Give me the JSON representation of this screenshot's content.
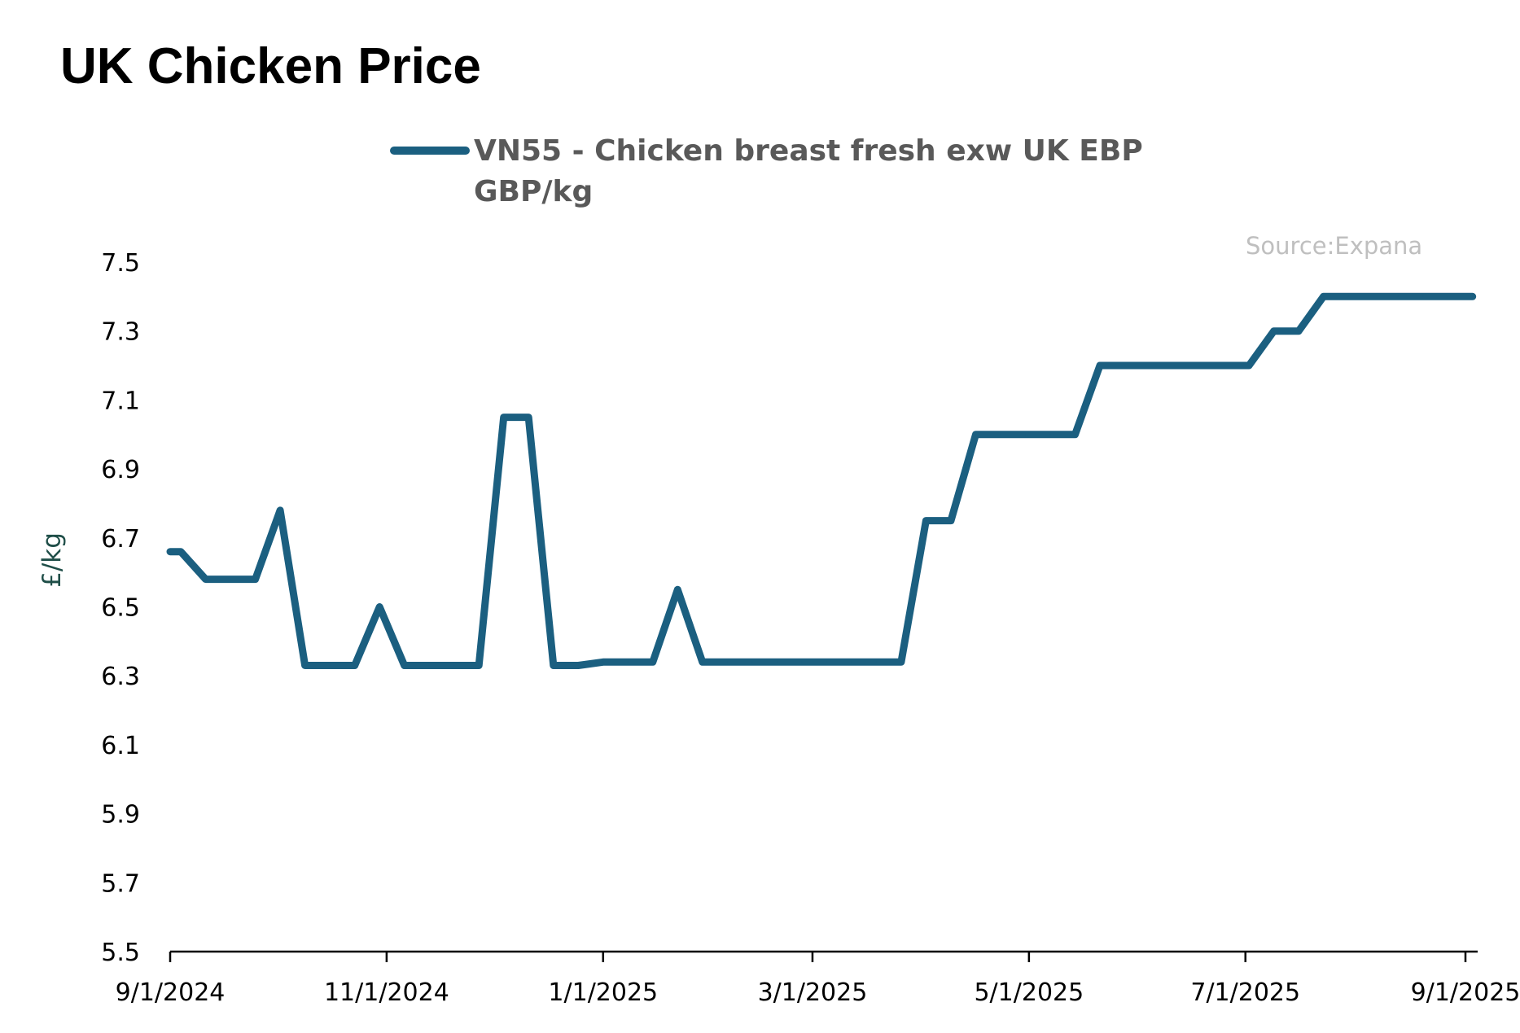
{
  "chart_data": {
    "type": "line",
    "title": "UK Chicken Price",
    "ylabel": "£/kg",
    "xlabel": "",
    "source": "Source:Expana",
    "ylim": [
      5.5,
      7.5
    ],
    "xlim": [
      "2024-09-01",
      "2025-09-03"
    ],
    "yticks": [
      5.5,
      5.7,
      5.9,
      6.1,
      6.3,
      6.5,
      6.7,
      6.9,
      7.1,
      7.3,
      7.5
    ],
    "xticks": [
      "2024-09-01",
      "2024-11-01",
      "2025-01-01",
      "2025-03-01",
      "2025-05-01",
      "2025-07-01",
      "2025-09-01"
    ],
    "xtick_labels": [
      "9/1/2024",
      "11/1/2024",
      "1/1/2025",
      "3/1/2025",
      "5/1/2025",
      "7/1/2025",
      "9/1/2025"
    ],
    "grid": false,
    "legend_position": "top-center",
    "series": [
      {
        "name": "VN55 - Chicken breast fresh exw UK EBP GBP/kg",
        "legend_lines": [
          "VN55 - Chicken breast fresh exw UK EBP",
          "GBP/kg"
        ],
        "color": "#1b5f80",
        "x": [
          "2024-09-01",
          "2024-09-04",
          "2024-09-11",
          "2024-09-18",
          "2024-09-25",
          "2024-10-02",
          "2024-10-09",
          "2024-10-16",
          "2024-10-23",
          "2024-10-30",
          "2024-11-06",
          "2024-11-13",
          "2024-11-20",
          "2024-11-27",
          "2024-12-04",
          "2024-12-11",
          "2024-12-18",
          "2024-12-25",
          "2025-01-01",
          "2025-01-08",
          "2025-01-15",
          "2025-01-22",
          "2025-01-29",
          "2025-02-05",
          "2025-02-12",
          "2025-02-19",
          "2025-02-26",
          "2025-03-05",
          "2025-03-12",
          "2025-03-19",
          "2025-03-26",
          "2025-04-02",
          "2025-04-09",
          "2025-04-16",
          "2025-04-23",
          "2025-04-30",
          "2025-05-07",
          "2025-05-14",
          "2025-05-21",
          "2025-05-28",
          "2025-06-04",
          "2025-06-11",
          "2025-06-18",
          "2025-06-25",
          "2025-07-02",
          "2025-07-09",
          "2025-07-16",
          "2025-07-23",
          "2025-07-30",
          "2025-08-06",
          "2025-08-13",
          "2025-08-20",
          "2025-08-27",
          "2025-09-03"
        ],
        "values": [
          6.66,
          6.66,
          6.58,
          6.58,
          6.58,
          6.78,
          6.33,
          6.33,
          6.33,
          6.5,
          6.33,
          6.33,
          6.33,
          6.33,
          7.05,
          7.05,
          6.33,
          6.33,
          6.34,
          6.34,
          6.34,
          6.55,
          6.34,
          6.34,
          6.34,
          6.34,
          6.34,
          6.34,
          6.34,
          6.34,
          6.34,
          6.75,
          6.75,
          7.0,
          7.0,
          7.0,
          7.0,
          7.0,
          7.2,
          7.2,
          7.2,
          7.2,
          7.2,
          7.2,
          7.2,
          7.3,
          7.3,
          7.4,
          7.4,
          7.4,
          7.4,
          7.4,
          7.4,
          7.4
        ]
      }
    ]
  }
}
